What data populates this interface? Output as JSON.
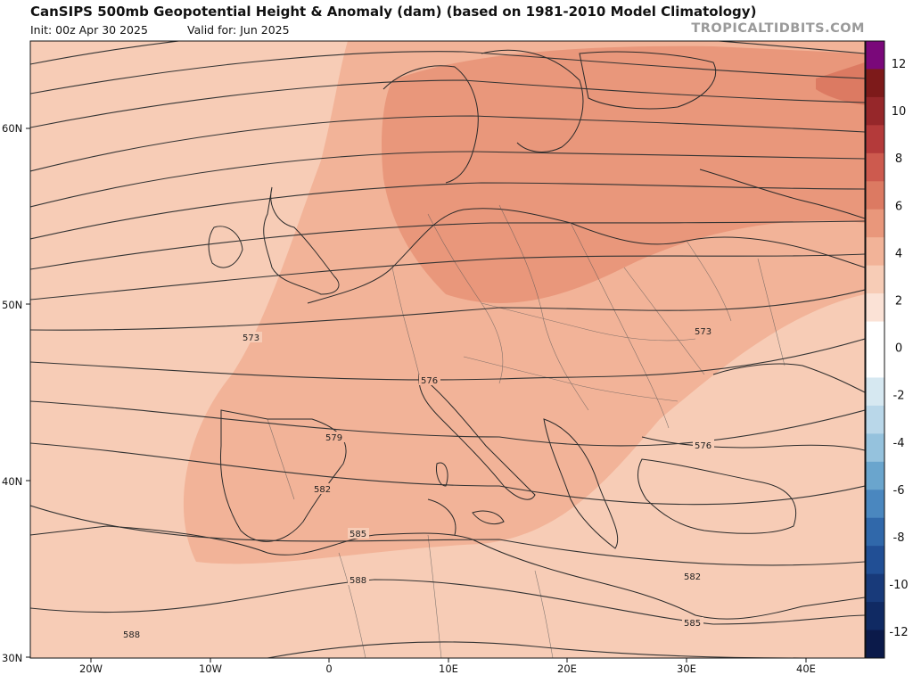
{
  "header": {
    "title": "CanSIPS 500mb Geopotential Height & Anomaly (dam) (based on 1981-2010 Model Climatology)",
    "init": "Init: 00z Apr 30 2025",
    "valid": "Valid for: Jun 2025",
    "brand": "TROPICALTIDBITS.COM"
  },
  "axes": {
    "lat_labels": [
      "60N",
      "50N",
      "40N",
      "30N"
    ],
    "lon_labels": [
      "20W",
      "10W",
      "0",
      "10E",
      "20E",
      "30E",
      "40E"
    ]
  },
  "contours": {
    "height_labels": [
      "573",
      "576",
      "579",
      "582",
      "585",
      "588",
      "573",
      "576",
      "582",
      "585",
      "588"
    ]
  },
  "colorbar": {
    "ticks": [
      "12",
      "10",
      "8",
      "6",
      "4",
      "2",
      "0",
      "-2",
      "-4",
      "-6",
      "-8",
      "-10",
      "-12"
    ],
    "colors": [
      "#7a087a",
      "#7d1a1a",
      "#96272a",
      "#b43a3a",
      "#cd5a4e",
      "#dc7a62",
      "#e9977b",
      "#f2b398",
      "#f7ccb6",
      "#fbe2d6",
      "#ffffff",
      "#ffffff",
      "#d6e8f1",
      "#b9d7e9",
      "#95c2dd",
      "#6aa5cd",
      "#4a87bf",
      "#3068aa",
      "#214f95",
      "#183a7a",
      "#102a63",
      "#0b1a4a"
    ]
  }
}
